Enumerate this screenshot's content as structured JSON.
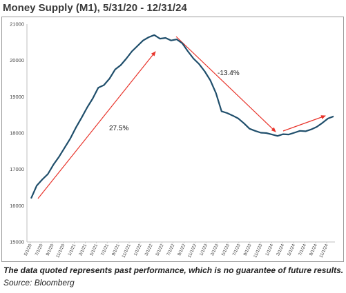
{
  "title": "Money Supply (M1), 5/31/20 - 12/31/24",
  "disclaimer": "The data quoted represents past performance, which is no guarantee of future results.",
  "source": "Source: Bloomberg",
  "colors": {
    "line": "#1f4e6b",
    "arrow": "#e8332a",
    "axis": "#bfbfbf",
    "frame": "#9a9a9a"
  },
  "chart_data": {
    "type": "line",
    "title": "Money Supply (M1), 5/31/20 - 12/31/24",
    "xlabel": "",
    "ylabel": "",
    "ylim": [
      15000,
      21000
    ],
    "yticks": [
      "21000",
      "20000",
      "19000",
      "18000",
      "17000",
      "16000",
      "15000"
    ],
    "xticks": [
      "5/1/20",
      "7/1/20",
      "9/1/20",
      "11/1/20",
      "1/1/21",
      "3/1/21",
      "5/1/21",
      "7/1/21",
      "9/1/21",
      "11/1/21",
      "1/1/22",
      "3/1/22",
      "5/1/22",
      "7/1/22",
      "9/1/22",
      "11/1/22",
      "1/1/23",
      "3/1/23",
      "5/1/23",
      "7/1/23",
      "9/1/23",
      "11/1/23",
      "1/1/24",
      "3/1/24",
      "5/1/24",
      "7/1/24",
      "9/1/24",
      "11/1/24"
    ],
    "grid": false,
    "legend": "none",
    "series": [
      {
        "values": [
          16200,
          16550,
          16720,
          16870,
          17130,
          17350,
          17600,
          17850,
          18150,
          18420,
          18700,
          18950,
          19250,
          19320,
          19500,
          19750,
          19870,
          20050,
          20250,
          20400,
          20550,
          20640,
          20700,
          20600,
          20620,
          20550,
          20580,
          20470,
          20250,
          20050,
          19900,
          19700,
          19450,
          19100,
          18600,
          18550,
          18480,
          18400,
          18270,
          18120,
          18060,
          18010,
          18000,
          17960,
          17920,
          17970,
          17960,
          18010,
          18060,
          18050,
          18100,
          18170,
          18280,
          18400,
          18460
        ]
      }
    ],
    "annotations": [
      {
        "text": "27.5%"
      },
      {
        "text": "-13.4%"
      }
    ]
  }
}
